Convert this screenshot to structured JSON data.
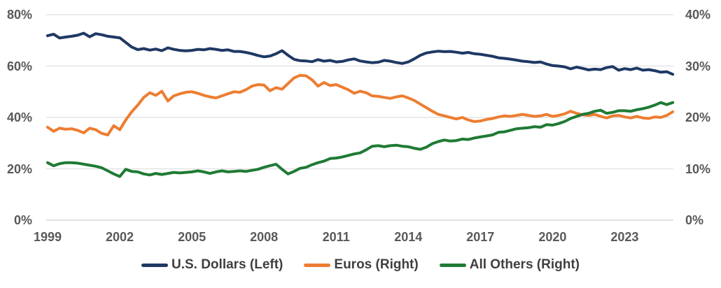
{
  "colors": {
    "background": "#ffffff",
    "grid": "#e4e4e4",
    "baseline": "#d9d9d9",
    "tick_label": "#595959",
    "legend_label": "#3f3f3f",
    "usd_line": "#1f3864",
    "euro_line": "#ed7d31",
    "others_line": "#1f7a34"
  },
  "chart_data": {
    "type": "line",
    "title": "",
    "xlabel": "",
    "ylabel_left": "",
    "ylabel_right": "",
    "grid": "horizontal-only",
    "legend_position": "bottom-center",
    "x_start": 1999.0,
    "x_step": 0.25,
    "x_end": 2025.0,
    "x_ticks": [
      "1999",
      "2002",
      "2005",
      "2008",
      "2011",
      "2014",
      "2017",
      "2020",
      "2023"
    ],
    "x_tick_years": [
      1999,
      2002,
      2005,
      2008,
      2011,
      2014,
      2017,
      2020,
      2023
    ],
    "left_axis": {
      "ticks": [
        "80%",
        "60%",
        "40%",
        "20%",
        "0%"
      ],
      "values": [
        80,
        60,
        40,
        20,
        0
      ],
      "min": 0,
      "max": 80
    },
    "right_axis": {
      "ticks": [
        "40%",
        "30%",
        "20%",
        "10%",
        "0%"
      ],
      "values": [
        40,
        30,
        20,
        10,
        0
      ],
      "min": 0,
      "max": 40
    },
    "series": [
      {
        "id": "us-dollars",
        "name": "U.S. Dollars (Left)",
        "axis": "left",
        "color": "#1f3864",
        "values": [
          71.8,
          72.4,
          70.9,
          71.3,
          71.6,
          72.0,
          72.8,
          71.4,
          72.6,
          72.2,
          71.6,
          71.3,
          71.0,
          69.2,
          67.4,
          66.4,
          66.8,
          66.2,
          66.6,
          66.0,
          67.1,
          66.5,
          66.1,
          65.9,
          66.1,
          66.5,
          66.3,
          66.8,
          66.5,
          66.1,
          66.3,
          65.7,
          65.7,
          65.3,
          64.8,
          64.1,
          63.6,
          63.9,
          64.8,
          66.0,
          64.2,
          62.6,
          62.1,
          62.0,
          61.7,
          62.5,
          61.9,
          62.2,
          61.6,
          61.8,
          62.4,
          62.8,
          62.0,
          61.6,
          61.3,
          61.5,
          62.2,
          61.9,
          61.4,
          61.0,
          61.6,
          62.8,
          64.2,
          65.1,
          65.5,
          65.8,
          65.6,
          65.7,
          65.4,
          65.0,
          65.3,
          64.8,
          64.6,
          64.2,
          63.8,
          63.2,
          63.0,
          62.7,
          62.3,
          61.9,
          61.7,
          61.4,
          61.6,
          60.8,
          60.2,
          60.0,
          59.7,
          58.9,
          59.6,
          59.1,
          58.5,
          58.8,
          58.6,
          59.4,
          59.8,
          58.4,
          59.0,
          58.6,
          59.2,
          58.4,
          58.6,
          58.2,
          57.6,
          57.8,
          56.8
        ]
      },
      {
        "id": "euros",
        "name": "Euros (Right)",
        "axis": "right",
        "color": "#ed7d31",
        "values": [
          18.1,
          17.3,
          17.9,
          17.7,
          17.8,
          17.5,
          17.0,
          17.9,
          17.6,
          16.9,
          16.6,
          18.4,
          17.6,
          19.5,
          21.1,
          22.4,
          23.9,
          24.8,
          24.3,
          25.1,
          23.2,
          24.2,
          24.6,
          24.9,
          25.0,
          24.7,
          24.3,
          24.0,
          23.8,
          24.2,
          24.6,
          25.0,
          24.9,
          25.4,
          26.1,
          26.4,
          26.3,
          25.2,
          25.8,
          25.5,
          26.6,
          27.7,
          28.2,
          28.1,
          27.3,
          26.1,
          26.8,
          26.2,
          26.4,
          25.9,
          25.4,
          24.7,
          25.1,
          24.8,
          24.2,
          24.1,
          23.9,
          23.7,
          24.0,
          24.2,
          23.8,
          23.3,
          22.6,
          21.9,
          21.2,
          20.6,
          20.3,
          20.0,
          19.7,
          20.0,
          19.5,
          19.2,
          19.3,
          19.6,
          19.8,
          20.1,
          20.3,
          20.2,
          20.4,
          20.6,
          20.4,
          20.2,
          20.3,
          20.6,
          20.2,
          20.4,
          20.7,
          21.2,
          20.8,
          20.5,
          20.4,
          20.6,
          20.2,
          19.9,
          20.3,
          20.4,
          20.1,
          19.9,
          20.2,
          19.9,
          19.8,
          20.1,
          20.0,
          20.4,
          21.1
        ]
      },
      {
        "id": "all-others",
        "name": "All Others (Right)",
        "axis": "right",
        "color": "#1f7a34",
        "values": [
          11.2,
          10.6,
          11.0,
          11.2,
          11.2,
          11.1,
          10.9,
          10.7,
          10.5,
          10.2,
          9.6,
          9.0,
          8.5,
          9.9,
          9.5,
          9.4,
          9.0,
          8.8,
          9.1,
          8.9,
          9.1,
          9.3,
          9.2,
          9.3,
          9.4,
          9.6,
          9.4,
          9.1,
          9.4,
          9.6,
          9.4,
          9.5,
          9.6,
          9.5,
          9.7,
          9.9,
          10.3,
          10.6,
          10.9,
          9.9,
          9.0,
          9.5,
          10.1,
          10.3,
          10.8,
          11.2,
          11.5,
          12.0,
          12.1,
          12.3,
          12.6,
          12.9,
          13.1,
          13.7,
          14.4,
          14.5,
          14.3,
          14.5,
          14.6,
          14.4,
          14.3,
          14.0,
          13.8,
          14.2,
          14.9,
          15.3,
          15.6,
          15.4,
          15.5,
          15.8,
          15.7,
          16.0,
          16.2,
          16.4,
          16.6,
          17.1,
          17.2,
          17.5,
          17.8,
          17.9,
          18.0,
          18.2,
          18.1,
          18.6,
          18.5,
          18.8,
          19.2,
          19.8,
          20.2,
          20.6,
          20.8,
          21.2,
          21.4,
          20.8,
          21.0,
          21.3,
          21.3,
          21.2,
          21.5,
          21.7,
          22.0,
          22.4,
          22.9,
          22.5,
          22.9
        ]
      }
    ]
  }
}
